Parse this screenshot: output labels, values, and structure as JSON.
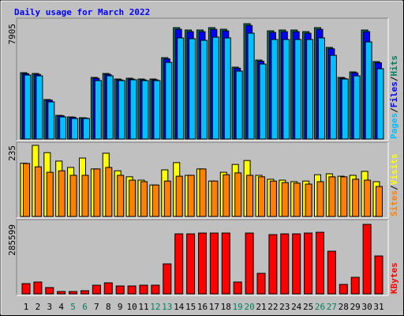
{
  "title": "Daily usage for March 2022",
  "legend_separator": "/",
  "chart_data": [
    {
      "type": "bar",
      "ylim": [
        0,
        7905
      ],
      "yticks": [
        7905
      ],
      "series": [
        {
          "name": "Hits",
          "color": "#00805c",
          "values": [
            4548,
            4494,
            2707,
            1624,
            1516,
            1462,
            4223,
            4494,
            4115,
            4169,
            4115,
            4115,
            5577,
            7634,
            7471,
            7471,
            7634,
            7525,
            4927,
            7905,
            5414,
            7417,
            7471,
            7471,
            7363,
            7634,
            6280,
            4223,
            4602,
            7471,
            5306
          ]
        },
        {
          "name": "Files",
          "color": "#0000ff",
          "values": [
            4480,
            4427,
            2666,
            1600,
            1493,
            1440,
            4160,
            4427,
            4053,
            4106,
            4053,
            4053,
            5493,
            7519,
            7359,
            7359,
            7519,
            7412,
            4853,
            7786,
            5333,
            7306,
            7359,
            7359,
            7253,
            7519,
            6186,
            4160,
            4533,
            7359,
            5226
          ]
        },
        {
          "name": "Pages",
          "color": "#00c0ff",
          "values": [
            4386,
            4331,
            2545,
            1516,
            1408,
            1408,
            4006,
            4331,
            4006,
            4061,
            4006,
            4006,
            5252,
            6930,
            6876,
            6768,
            6984,
            6930,
            4656,
            7255,
            5143,
            6822,
            6822,
            6822,
            6822,
            6930,
            5739,
            4115,
            4331,
            6659,
            4818
          ]
        }
      ]
    },
    {
      "type": "bar",
      "ylim": [
        0,
        235
      ],
      "yticks": [
        235
      ],
      "series": [
        {
          "name": "Visits",
          "color": "#ffff00",
          "values": [
            176,
            235,
            211,
            183,
            162,
            193,
            157,
            209,
            151,
            131,
            120,
            104,
            154,
            178,
            136,
            157,
            117,
            146,
            172,
            185,
            136,
            123,
            120,
            115,
            117,
            138,
            141,
            133,
            136,
            149,
            115
          ]
        },
        {
          "name": "Sites",
          "color": "#ff8000",
          "values": [
            175,
            164,
            146,
            151,
            136,
            136,
            157,
            162,
            136,
            120,
            115,
            104,
            117,
            133,
            136,
            157,
            117,
            138,
            144,
            136,
            131,
            117,
            112,
            110,
            107,
            115,
            131,
            131,
            123,
            120,
            99
          ]
        }
      ]
    },
    {
      "type": "bar",
      "ylim": [
        0,
        285599
      ],
      "yticks": [
        285599
      ],
      "categories": [
        "1",
        "2",
        "3",
        "4",
        "5",
        "6",
        "7",
        "8",
        "9",
        "10",
        "11",
        "12",
        "13",
        "14",
        "15",
        "16",
        "17",
        "18",
        "19",
        "20",
        "21",
        "22",
        "23",
        "24",
        "25",
        "26",
        "27",
        "28",
        "29",
        "30",
        "31"
      ],
      "category_colors": [
        "#000000",
        "#000000",
        "#000000",
        "#000000",
        "#00805c",
        "#00805c",
        "#000000",
        "#000000",
        "#000000",
        "#000000",
        "#000000",
        "#00805c",
        "#00805c",
        "#000000",
        "#000000",
        "#000000",
        "#000000",
        "#000000",
        "#00805c",
        "#00805c",
        "#000000",
        "#000000",
        "#000000",
        "#000000",
        "#000000",
        "#00805c",
        "#00805c",
        "#000000",
        "#000000",
        "#000000",
        "#000000"
      ],
      "series": [
        {
          "name": "KBytes",
          "color": "#ff0000",
          "values": [
            42200,
            48700,
            26000,
            9700,
            9700,
            13000,
            35700,
            45400,
            32500,
            32500,
            35700,
            35700,
            123300,
            246600,
            246600,
            249900,
            249900,
            249900,
            48700,
            249900,
            84400,
            243400,
            246600,
            246600,
            249900,
            253100,
            175200,
            38900,
            68100,
            285599,
            155800
          ]
        }
      ]
    }
  ]
}
